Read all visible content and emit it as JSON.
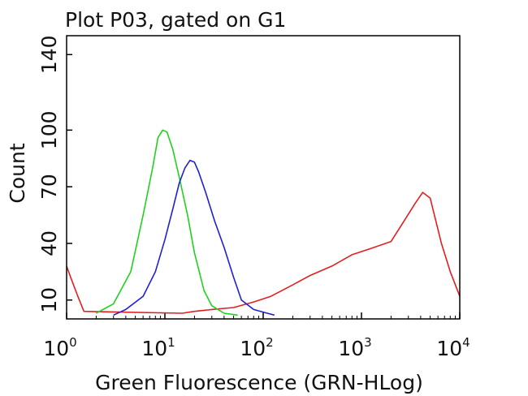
{
  "chart_data": {
    "type": "line",
    "title": "Plot P03, gated on G1",
    "xlabel": "Green Fluorescence (GRN-HLog)",
    "ylabel": "Count",
    "x_scale": "log",
    "xlim": [
      1,
      10000
    ],
    "ylim": [
      0,
      150
    ],
    "x_ticks": [
      {
        "base": "10",
        "exp": "0",
        "value": 1
      },
      {
        "base": "10",
        "exp": "1",
        "value": 10
      },
      {
        "base": "10",
        "exp": "2",
        "value": 100
      },
      {
        "base": "10",
        "exp": "3",
        "value": 1000
      },
      {
        "base": "10",
        "exp": "4",
        "value": 10000
      }
    ],
    "y_ticks": [
      "10",
      "40",
      "70",
      "100",
      "140"
    ],
    "y_tick_values": [
      10,
      40,
      70,
      100,
      140
    ],
    "grid": false,
    "legend": "none",
    "series": [
      {
        "color": "#e02020",
        "x": [
          1.0,
          1.1,
          1.3,
          1.5,
          15,
          20,
          30,
          50,
          80,
          120,
          200,
          300,
          500,
          800,
          1200,
          2000,
          2800,
          3500,
          4200,
          5000,
          6500,
          8000,
          10000
        ],
        "y": [
          28,
          22,
          12,
          4,
          3,
          4,
          5,
          6,
          9,
          12,
          18,
          23,
          28,
          34,
          37,
          41,
          53,
          61,
          67,
          64,
          40,
          25,
          12
        ]
      },
      {
        "color": "#20d020",
        "x": [
          2.0,
          3.0,
          4.5,
          6.0,
          7.5,
          8.5,
          9.5,
          10.5,
          12,
          14,
          17,
          20,
          25,
          30,
          40,
          55
        ],
        "y": [
          3,
          8,
          25,
          55,
          80,
          96,
          100,
          99,
          90,
          75,
          55,
          35,
          15,
          7,
          3,
          2
        ]
      },
      {
        "color": "#2020d0",
        "x": [
          3.0,
          4.0,
          6.0,
          8.0,
          10,
          12,
          14,
          16,
          18,
          20,
          22,
          26,
          32,
          40,
          50,
          60,
          80,
          110,
          130
        ],
        "y": [
          2,
          5,
          12,
          25,
          42,
          58,
          72,
          80,
          84,
          83,
          78,
          67,
          52,
          38,
          22,
          10,
          5,
          3,
          2
        ]
      }
    ]
  }
}
